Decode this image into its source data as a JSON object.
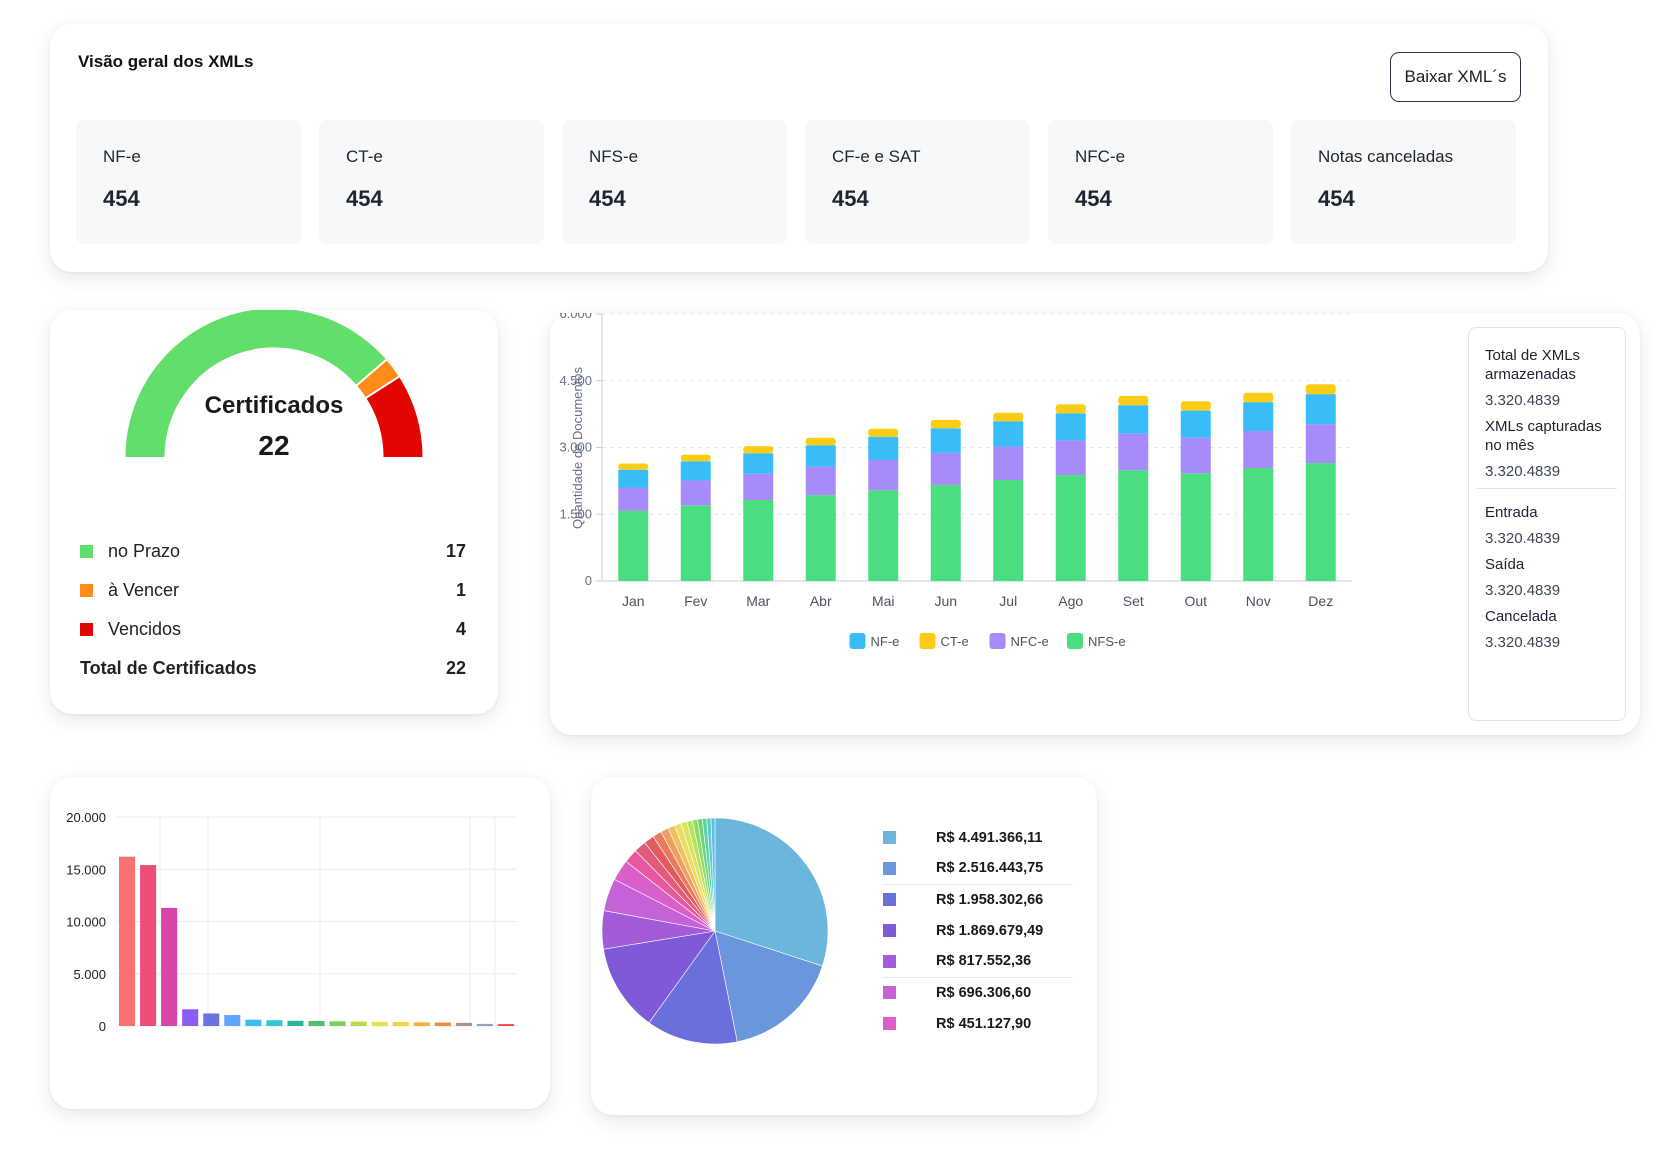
{
  "overview": {
    "title": "Visão geral dos XMLs",
    "download_label": "Baixar XML´s",
    "stats": [
      {
        "label": "NF-e",
        "value": "454"
      },
      {
        "label": "CT-e",
        "value": "454"
      },
      {
        "label": "NFS-e",
        "value": "454"
      },
      {
        "label": "CF-e e SAT",
        "value": "454"
      },
      {
        "label": "NFC-e",
        "value": "454"
      },
      {
        "label": "Notas canceladas",
        "value": "454"
      }
    ]
  },
  "certificates": {
    "gauge_title": "Certificados",
    "gauge_value": "22",
    "items": [
      {
        "label": "no Prazo",
        "value": "17",
        "color": "#62de6b"
      },
      {
        "label": "à Vencer",
        "value": "1",
        "color": "#ff8c1a"
      },
      {
        "label": "Vencidos",
        "value": "4",
        "color": "#e10600"
      }
    ],
    "total_label": "Total de Certificados",
    "total_value": "22"
  },
  "summary": {
    "total_label": "Total de XMLs armazenadas",
    "total_value": "3.320.4839",
    "month_label": "XMLs capturadas no mês",
    "month_value": "3.320.4839",
    "entrada_label": "Entrada",
    "entrada_value": "3.320.4839",
    "saida_label": "Saída",
    "saida_value": "3.320.4839",
    "cancelada_label": "Cancelada",
    "cancelada_value": "3.320.4839"
  },
  "chart_data": [
    {
      "type": "bar",
      "stacked": true,
      "ylabel": "Quantidade de Documentos",
      "ylim": [
        0,
        6000
      ],
      "yticks": [
        "0",
        "1.500",
        "3.000",
        "4.500",
        "6.000"
      ],
      "ytick_values": [
        0,
        1500,
        3000,
        4500,
        6000
      ],
      "categories": [
        "Jan",
        "Fev",
        "Mar",
        "Abr",
        "Mai",
        "Jun",
        "Jul",
        "Ago",
        "Set",
        "Out",
        "Nov",
        "Dez"
      ],
      "legend_position": "bottom",
      "series": [
        {
          "name": "NFS-e",
          "color": "#4ade80",
          "values": [
            1580,
            1700,
            1820,
            1930,
            2040,
            2160,
            2270,
            2380,
            2490,
            2420,
            2540,
            2650
          ]
        },
        {
          "name": "NFC-e",
          "color": "#a78bfa",
          "values": [
            520,
            560,
            590,
            640,
            680,
            720,
            750,
            780,
            820,
            800,
            830,
            870
          ]
        },
        {
          "name": "NF-e",
          "color": "#38bdf8",
          "values": [
            400,
            430,
            460,
            480,
            520,
            550,
            570,
            610,
            640,
            610,
            650,
            680
          ]
        },
        {
          "name": "CT-e",
          "color": "#facc15",
          "values": [
            140,
            150,
            160,
            170,
            180,
            190,
            190,
            200,
            210,
            210,
            210,
            220
          ]
        }
      ],
      "legend_order": [
        "NF-e",
        "CT-e",
        "NFC-e",
        "NFS-e"
      ]
    },
    {
      "type": "bar",
      "ylim": [
        0,
        20000
      ],
      "yticks": [
        "0",
        "5.000",
        "10.000",
        "15.000",
        "20.000"
      ],
      "ytick_values": [
        0,
        5000,
        10000,
        15000,
        20000
      ],
      "values": [
        16200,
        15400,
        11300,
        1600,
        1200,
        1050,
        600,
        550,
        500,
        480,
        450,
        420,
        400,
        380,
        350,
        330,
        300,
        200,
        180
      ],
      "colors": [
        "#f87171",
        "#ee4d7a",
        "#d946a8",
        "#8b5cf6",
        "#6b73e0",
        "#60a5fa",
        "#38bdf8",
        "#36c3d6",
        "#2bb59a",
        "#4fbf6b",
        "#79cf57",
        "#b4dd45",
        "#e4e44a",
        "#f5d33b",
        "#f7b23a",
        "#f38a3d",
        "#a8948c",
        "#8fa3b8",
        "#ef4444"
      ]
    },
    {
      "type": "pie",
      "values": [
        4491366.11,
        2516443.75,
        1958302.66,
        1869679.49,
        817552.36,
        696306.6,
        451127.9,
        300000,
        260000,
        220000,
        190000,
        170000,
        150000,
        140000,
        130000,
        120000,
        110000,
        100000,
        95000,
        90000,
        85000
      ],
      "colors": [
        "#6bb6dc",
        "#6a96dc",
        "#6a6fdb",
        "#7e5ad8",
        "#a35cd8",
        "#c662d8",
        "#da5fc8",
        "#e8589f",
        "#e05c7a",
        "#e35c5c",
        "#e87a5e",
        "#eda05f",
        "#f0c060",
        "#eddc62",
        "#d8e55f",
        "#b6e25f",
        "#8fdc63",
        "#6bd47a",
        "#5fd3a6",
        "#5fcbd0",
        "#62bde0"
      ],
      "legend": [
        {
          "label": "R$ 4.491.366,11",
          "color": "#6bb6dc"
        },
        {
          "label": "R$ 2.516.443,75",
          "color": "#6a96dc"
        },
        {
          "label": "R$ 1.958.302,66",
          "color": "#6a6fdb"
        },
        {
          "label": "R$ 1.869.679,49",
          "color": "#7e5ad8"
        },
        {
          "label": "R$ 817.552,36",
          "color": "#a35cd8"
        },
        {
          "label": "R$ 696.306,60",
          "color": "#c662d8"
        },
        {
          "label": "R$ 451.127,90",
          "color": "#da5fc8"
        }
      ]
    }
  ]
}
